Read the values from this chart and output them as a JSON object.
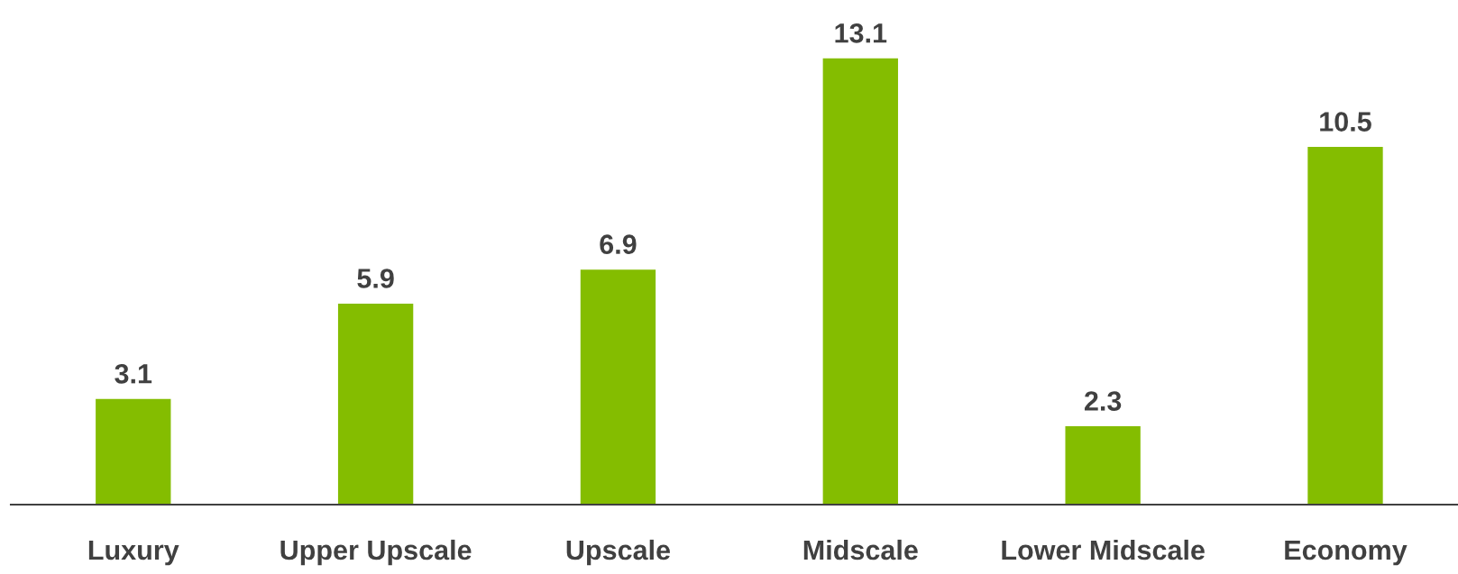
{
  "chart_data": {
    "type": "bar",
    "categories": [
      "Luxury",
      "Upper Upscale",
      "Upscale",
      "Midscale",
      "Lower Midscale",
      "Economy"
    ],
    "values": [
      3.1,
      5.9,
      6.9,
      13.1,
      2.3,
      10.5
    ],
    "color": "#84bd00",
    "data_labels": true,
    "grid": false,
    "legend": false
  }
}
